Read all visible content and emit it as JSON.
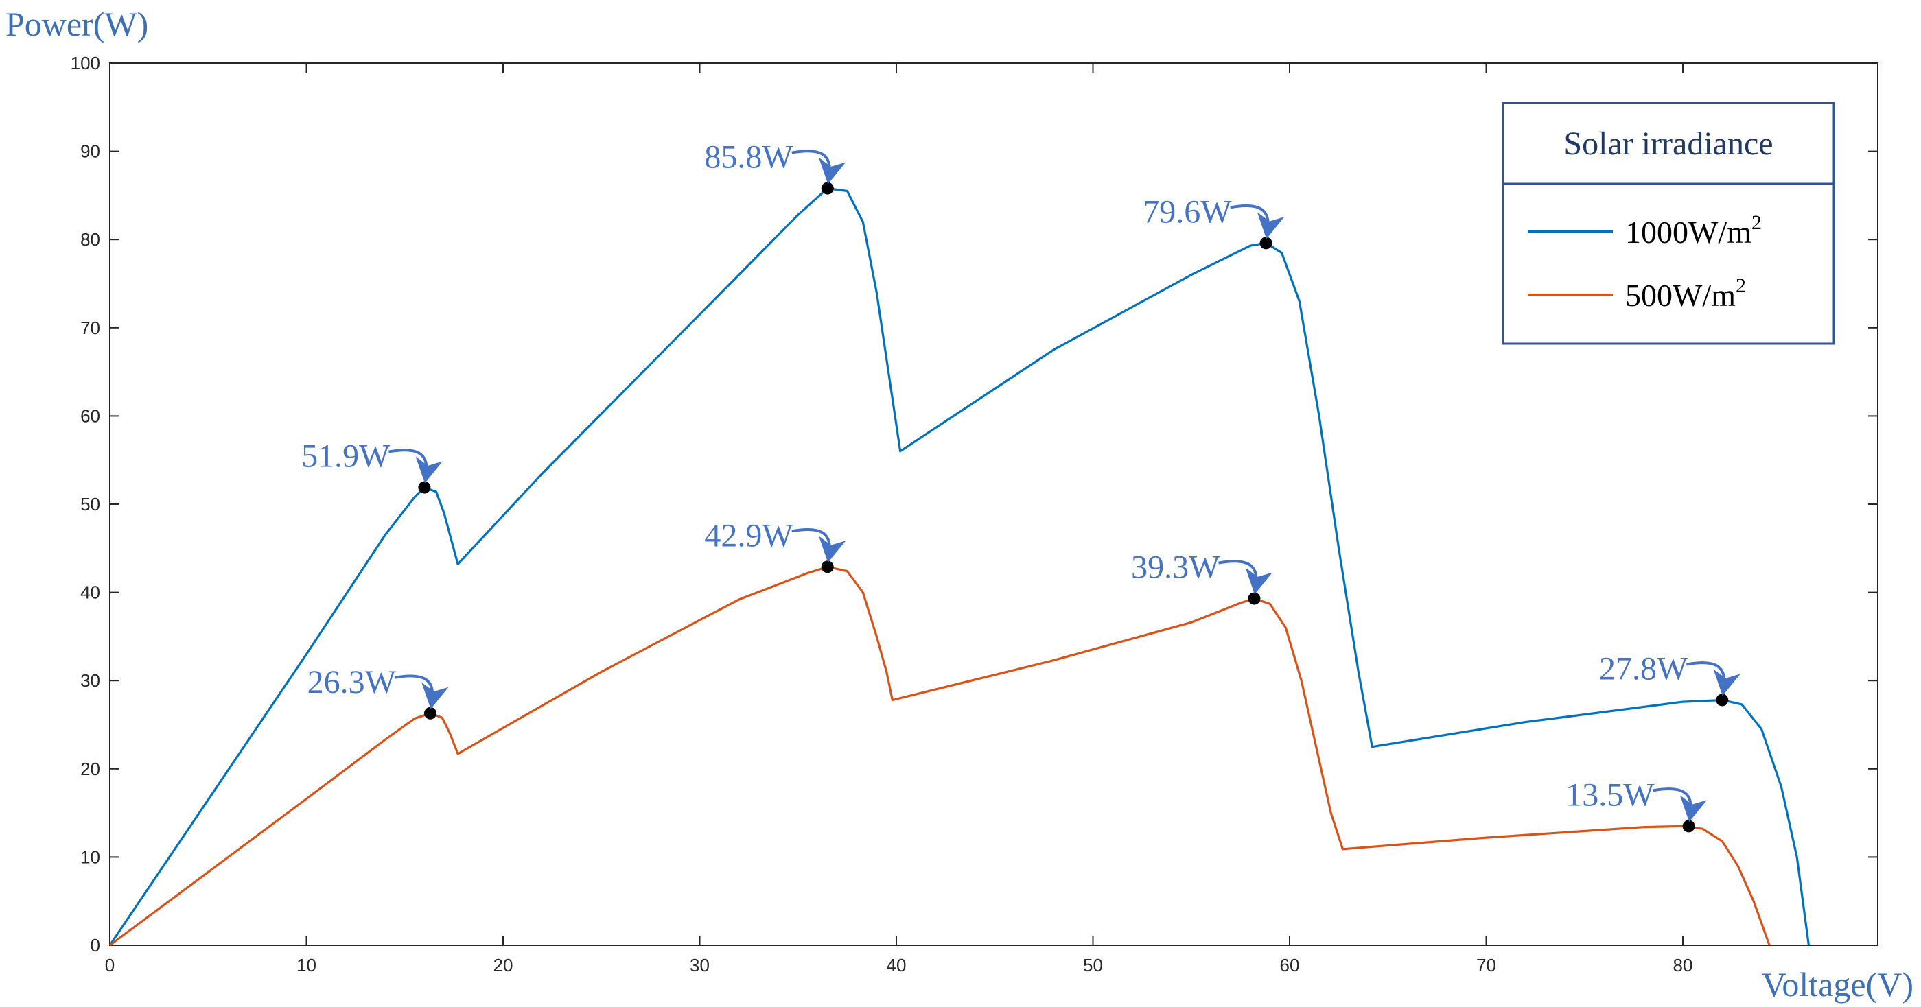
{
  "chart_data": {
    "type": "line",
    "title": "",
    "xlabel": "Voltage(V)",
    "ylabel": "Power(W)",
    "xlim": [
      0,
      90
    ],
    "ylim": [
      0,
      100
    ],
    "x_ticks": [
      0,
      10,
      20,
      30,
      40,
      50,
      60,
      70,
      80
    ],
    "y_ticks": [
      0,
      10,
      20,
      30,
      40,
      50,
      60,
      70,
      80,
      90,
      100
    ],
    "grid": false,
    "legend": {
      "title": "Solar irradiance",
      "position": "top-right"
    },
    "series": [
      {
        "name_base": "1000W/m",
        "name_sup": "2",
        "color": "#0072bd",
        "points": [
          [
            0,
            0
          ],
          [
            5,
            16.5
          ],
          [
            10,
            33
          ],
          [
            14,
            46.5
          ],
          [
            15.5,
            50.8
          ],
          [
            16,
            51.9
          ],
          [
            16.6,
            51.4
          ],
          [
            17,
            49
          ],
          [
            17.7,
            43.2
          ],
          [
            22,
            53.5
          ],
          [
            30,
            71.5
          ],
          [
            35,
            82.8
          ],
          [
            36.5,
            85.8
          ],
          [
            37.5,
            85.5
          ],
          [
            38.3,
            82
          ],
          [
            39,
            74
          ],
          [
            39.6,
            65
          ],
          [
            40.2,
            56
          ],
          [
            48,
            67.5
          ],
          [
            55,
            76
          ],
          [
            58,
            79.3
          ],
          [
            58.8,
            79.6
          ],
          [
            59.6,
            78.5
          ],
          [
            60.5,
            73
          ],
          [
            61.5,
            60
          ],
          [
            62.5,
            45
          ],
          [
            63.5,
            31
          ],
          [
            64.2,
            22.5
          ],
          [
            72,
            25.3
          ],
          [
            80,
            27.6
          ],
          [
            82,
            27.8
          ],
          [
            83,
            27.3
          ],
          [
            84,
            24.5
          ],
          [
            85,
            18
          ],
          [
            85.8,
            10
          ],
          [
            86.4,
            0
          ]
        ]
      },
      {
        "name_base": "500W/m",
        "name_sup": "2",
        "color": "#d95319",
        "points": [
          [
            0,
            0
          ],
          [
            5,
            8.3
          ],
          [
            10,
            16.6
          ],
          [
            14,
            23.3
          ],
          [
            15.5,
            25.7
          ],
          [
            16.3,
            26.3
          ],
          [
            16.9,
            25.8
          ],
          [
            17.3,
            24
          ],
          [
            17.7,
            21.7
          ],
          [
            25,
            31
          ],
          [
            32,
            39.2
          ],
          [
            35.5,
            42.2
          ],
          [
            36.5,
            42.9
          ],
          [
            37.5,
            42.4
          ],
          [
            38.3,
            40
          ],
          [
            39,
            35
          ],
          [
            39.5,
            31
          ],
          [
            39.8,
            27.8
          ],
          [
            48,
            32.3
          ],
          [
            55,
            36.6
          ],
          [
            57.5,
            38.8
          ],
          [
            58.2,
            39.3
          ],
          [
            59,
            38.7
          ],
          [
            59.8,
            36
          ],
          [
            60.6,
            30
          ],
          [
            61.4,
            22
          ],
          [
            62.1,
            15
          ],
          [
            62.7,
            10.9
          ],
          [
            70,
            12.2
          ],
          [
            78,
            13.4
          ],
          [
            80,
            13.5
          ],
          [
            81,
            13.2
          ],
          [
            82,
            11.8
          ],
          [
            82.8,
            9
          ],
          [
            83.6,
            5
          ],
          [
            84.4,
            0
          ]
        ]
      }
    ],
    "annotations": [
      {
        "series": 0,
        "x": 16.0,
        "y": 51.9,
        "text": "51.9W",
        "dir": "left"
      },
      {
        "series": 0,
        "x": 36.5,
        "y": 85.8,
        "text": "85.8W",
        "dir": "left"
      },
      {
        "series": 0,
        "x": 58.8,
        "y": 79.6,
        "text": "79.6W",
        "dir": "left"
      },
      {
        "series": 0,
        "x": 82.0,
        "y": 27.8,
        "text": "27.8W",
        "dir": "left"
      },
      {
        "series": 1,
        "x": 16.3,
        "y": 26.3,
        "text": "26.3W",
        "dir": "left"
      },
      {
        "series": 1,
        "x": 36.5,
        "y": 42.9,
        "text": "42.9W",
        "dir": "left"
      },
      {
        "series": 1,
        "x": 58.2,
        "y": 39.3,
        "text": "39.3W",
        "dir": "left"
      },
      {
        "series": 1,
        "x": 80.3,
        "y": 13.5,
        "text": "13.5W",
        "dir": "left"
      }
    ]
  }
}
